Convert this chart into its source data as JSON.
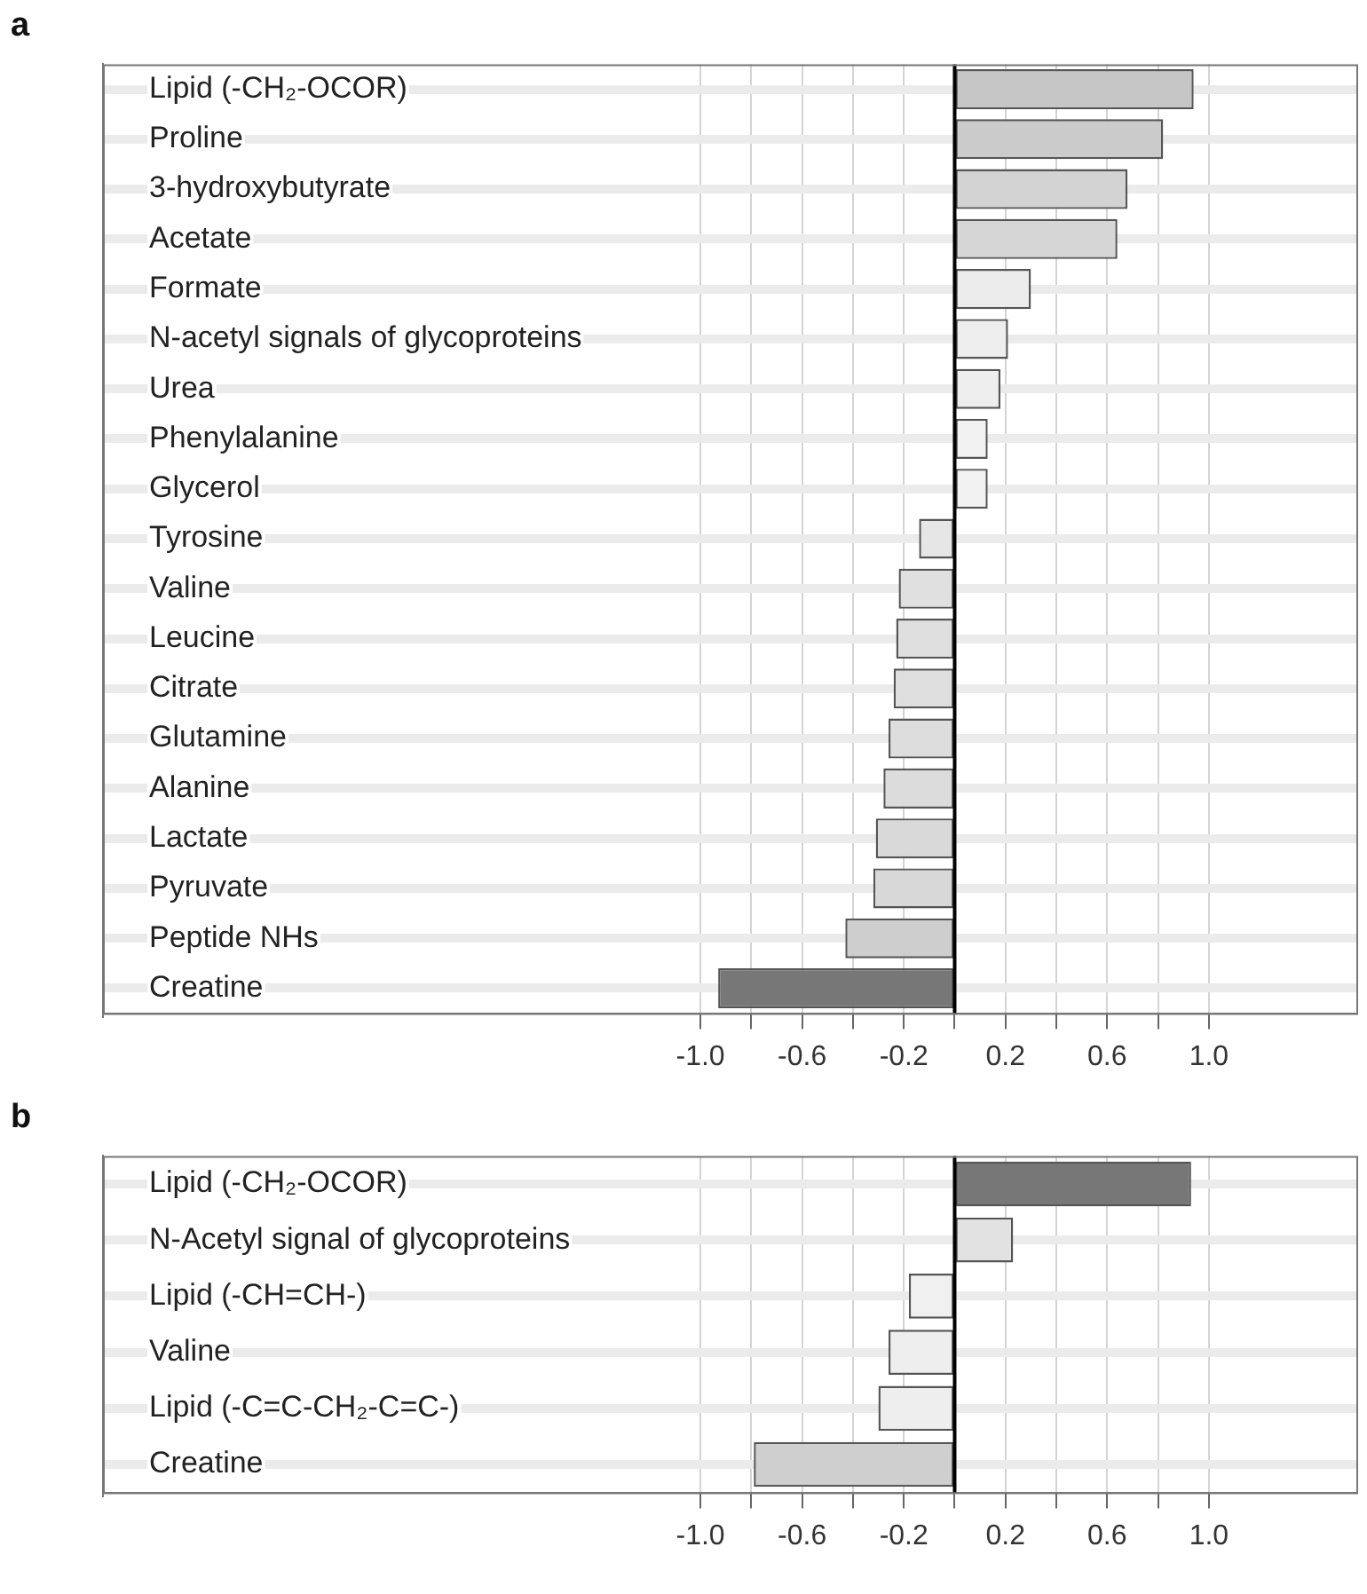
{
  "chart_data": [
    {
      "type": "bar",
      "title": "a",
      "orientation": "horizontal",
      "categories": [
        "Lipid (-CH₂-OCOR)",
        "Proline",
        "3-hydroxybutyrate",
        "Acetate",
        "Formate",
        "N-acetyl signals of glycoproteins",
        "Urea",
        "Phenylalanine",
        "Glycerol",
        "Tyrosine",
        "Valine",
        "Leucine",
        "Citrate",
        "Glutamine",
        "Alanine",
        "Lactate",
        "Pyruvate",
        "Peptide NHs",
        "Creatine"
      ],
      "values": [
        0.94,
        0.82,
        0.68,
        0.64,
        0.3,
        0.21,
        0.18,
        0.13,
        0.13,
        -0.14,
        -0.22,
        -0.23,
        -0.24,
        -0.26,
        -0.28,
        -0.31,
        -0.32,
        -0.43,
        -0.93
      ],
      "colors": [
        "#c6c6c6",
        "#cbcbcb",
        "#d3d3d3",
        "#d6d6d6",
        "#ececec",
        "#eeeeee",
        "#eeeeee",
        "#f2f2f2",
        "#f2f2f2",
        "#e6e6e6",
        "#e0e0e0",
        "#dfdfdf",
        "#dfdfdf",
        "#dddddd",
        "#dcdcdc",
        "#d9d9d9",
        "#d8d8d8",
        "#cecece",
        "#777777"
      ],
      "xlim": [
        -3.35,
        1.58
      ],
      "xticks": [
        {
          "value": -1,
          "label": "-1.0"
        },
        {
          "value": -0.8,
          "label": null
        },
        -0.6,
        {
          "value": -0.4,
          "label": null
        },
        -0.2,
        {
          "value": 0,
          "label": null
        },
        0.2,
        {
          "value": 0.4,
          "label": null
        },
        0.6,
        {
          "value": 0.8,
          "label": null
        },
        {
          "value": 1,
          "label": "1.0"
        }
      ],
      "grid": true,
      "ref_lines": [
        {
          "axis": "x",
          "value": 0,
          "color": "#000000"
        }
      ]
    },
    {
      "type": "bar",
      "title": "b",
      "orientation": "horizontal",
      "categories": [
        "Lipid (-CH₂-OCOR)",
        "N-Acetyl signal of glycoproteins",
        "Lipid (-CH=CH-)",
        "Valine",
        "Lipid (-C=C-CH₂-C=C-)",
        "Creatine"
      ],
      "values": [
        0.93,
        0.23,
        -0.18,
        -0.26,
        -0.3,
        -0.79
      ],
      "colors": [
        "#777777",
        "#e2e2e2",
        "#f0f0f0",
        "#eeeeee",
        "#eeeeee",
        "#cfcfcf"
      ],
      "xlim": [
        -3.35,
        1.58
      ],
      "xticks": [
        {
          "value": -1,
          "label": "-1.0"
        },
        {
          "value": -0.8,
          "label": null
        },
        -0.6,
        {
          "value": -0.4,
          "label": null
        },
        -0.2,
        {
          "value": 0,
          "label": null
        },
        0.2,
        {
          "value": 0.4,
          "label": null
        },
        0.6,
        {
          "value": 0.8,
          "label": null
        },
        {
          "value": 1,
          "label": "1.0"
        }
      ],
      "grid": true,
      "ref_lines": [
        {
          "axis": "x",
          "value": 0,
          "color": "#000000"
        }
      ]
    }
  ]
}
